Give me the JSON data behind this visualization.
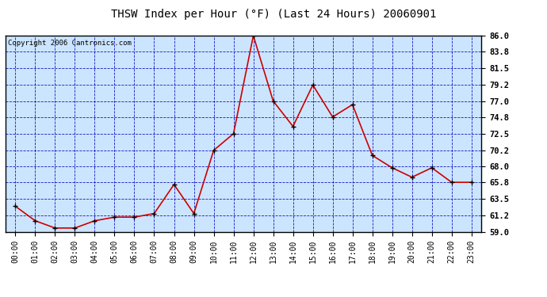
{
  "title": "THSW Index per Hour (°F) (Last 24 Hours) 20060901",
  "copyright": "Copyright 2006 Cantronics.com",
  "hours": [
    "00:00",
    "01:00",
    "02:00",
    "03:00",
    "04:00",
    "05:00",
    "06:00",
    "07:00",
    "08:00",
    "09:00",
    "10:00",
    "11:00",
    "12:00",
    "13:00",
    "14:00",
    "15:00",
    "16:00",
    "17:00",
    "18:00",
    "19:00",
    "20:00",
    "21:00",
    "22:00",
    "23:00"
  ],
  "values": [
    62.5,
    60.5,
    59.5,
    59.5,
    60.5,
    61.0,
    61.0,
    61.5,
    65.5,
    61.5,
    70.2,
    72.5,
    86.0,
    77.0,
    73.5,
    79.2,
    74.8,
    76.5,
    69.5,
    67.8,
    66.5,
    67.8,
    65.8,
    65.8
  ],
  "ylim": [
    59.0,
    86.0
  ],
  "yticks": [
    59.0,
    61.2,
    63.5,
    65.8,
    68.0,
    70.2,
    72.5,
    74.8,
    77.0,
    79.2,
    81.5,
    83.8,
    86.0
  ],
  "line_color": "#cc0000",
  "marker_color": "#000000",
  "plot_bg": "#cce5ff",
  "grid_color": "#0000bb",
  "title_fontsize": 10,
  "copyright_fontsize": 6.5,
  "tick_fontsize": 7,
  "ytick_fontsize": 7.5
}
